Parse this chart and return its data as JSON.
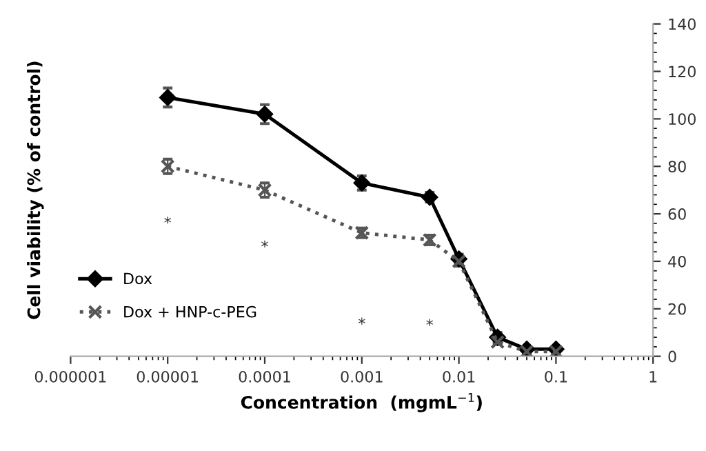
{
  "chart_data": {
    "type": "line",
    "xlabel": "Concentration  (mgmL$^{−1}$)",
    "ylabel": "Cell viability (% of control)",
    "x": [
      1e-05,
      0.0001,
      0.001,
      0.005,
      0.01,
      0.025,
      0.05,
      0.1
    ],
    "series": [
      {
        "name": "Dox",
        "color": "#000000",
        "marker": "diamond",
        "line_style": "solid",
        "values": [
          109,
          102,
          73,
          67,
          41,
          8,
          3,
          3
        ],
        "errors": [
          4,
          4,
          3,
          2,
          2,
          2,
          1,
          1
        ]
      },
      {
        "name": "Dox + HNP-c-PEG",
        "color": "#555555",
        "marker": "cross",
        "line_style": "dotted",
        "values": [
          80,
          70,
          52,
          49,
          40,
          6,
          2,
          2
        ],
        "errors": [
          3,
          3,
          2,
          2,
          2,
          1,
          1,
          1
        ]
      }
    ],
    "annotations": [
      "*",
      "*",
      "*",
      "*"
    ],
    "log": "x",
    "xlim": [
      1e-06,
      1
    ],
    "xticks": [
      {
        "value": 1e-06,
        "label": "0.000001"
      },
      {
        "value": 1e-05,
        "label": "0.00001"
      },
      {
        "value": 0.0001,
        "label": "0.0001"
      },
      {
        "value": 0.001,
        "label": "0.001"
      },
      {
        "value": 0.01,
        "label": "0.01"
      },
      {
        "value": 0.1,
        "label": "0.1"
      },
      {
        "value": 1,
        "label": "1"
      }
    ],
    "ylim": [
      0,
      140
    ],
    "yticks": [
      0,
      20,
      40,
      60,
      80,
      100,
      120,
      140
    ],
    "grid": false,
    "legend": "bottom left"
  }
}
